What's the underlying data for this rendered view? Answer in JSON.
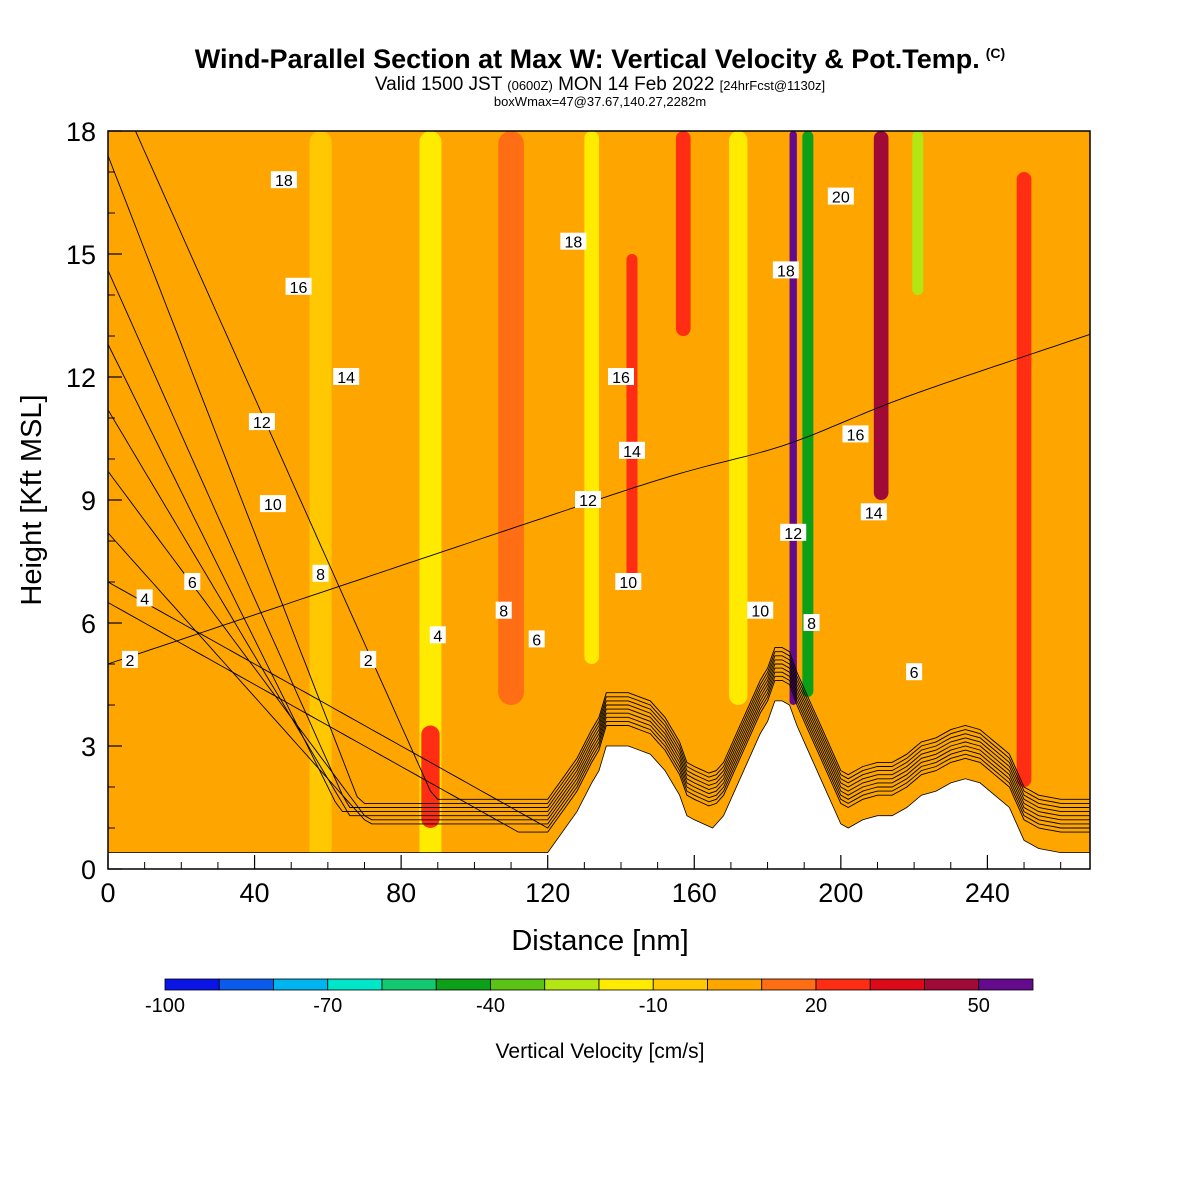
{
  "header": {
    "title": "Wind-Parallel Section at Max W: Vertical Velocity & Pot.Temp.",
    "copyright": "(C)",
    "valid_prefix": "Valid 1500 JST",
    "valid_utc": "(0600Z)",
    "valid_date": "MON 14 Feb 2022",
    "forecast": "[24hrFcst@1130z]",
    "boxwmax": "boxWmax=47@37.67,140.27,2282m"
  },
  "chart_data": {
    "type": "heatmap",
    "xlabel": "Distance [nm]",
    "ylabel": "Height [Kft MSL]",
    "xlim": [
      0,
      268
    ],
    "ylim": [
      0,
      18
    ],
    "x_ticks": [
      0,
      40,
      80,
      120,
      160,
      200,
      240
    ],
    "y_ticks": [
      0,
      3,
      6,
      9,
      12,
      15,
      18
    ],
    "colorbar": {
      "label": "Vertical Velocity [cm/s]",
      "tick_labels": [
        -100,
        -70,
        -40,
        -10,
        20,
        50
      ],
      "bins": [
        -100,
        -90,
        -80,
        -70,
        -60,
        -50,
        -40,
        -30,
        -20,
        -10,
        0,
        10,
        20,
        30,
        40,
        50,
        60
      ],
      "colors": [
        "#0a14e6",
        "#0a5aeb",
        "#00b4f0",
        "#00e6c8",
        "#14c870",
        "#0ca019",
        "#5ac314",
        "#b4e614",
        "#ffeb00",
        "#ffc800",
        "#ffa500",
        "#ff6e14",
        "#ff2d14",
        "#dc0a19",
        "#a00a37",
        "#640a8c"
      ]
    },
    "background_velocity": 2,
    "velocity_bands": [
      {
        "center_x": 5,
        "width": 30,
        "z_min": 0,
        "z_max": 6.3,
        "value": 5
      },
      {
        "center_x": 66,
        "width": 8,
        "z_min": 0,
        "z_max": 6,
        "value": 5
      },
      {
        "center_x": 58,
        "width": 6,
        "z_min": 0,
        "z_max": 18,
        "value": -5
      },
      {
        "center_x": 88,
        "width": 6,
        "z_min": 0,
        "z_max": 18,
        "value": -15
      },
      {
        "center_x": 110,
        "width": 7,
        "z_min": 4,
        "z_max": 18,
        "value": 15
      },
      {
        "center_x": 132,
        "width": 4,
        "z_min": 5,
        "z_max": 18,
        "value": -15
      },
      {
        "center_x": 143,
        "width": 3,
        "z_min": 7,
        "z_max": 15,
        "value": 20
      },
      {
        "center_x": 157,
        "width": 4,
        "z_min": 13,
        "z_max": 18,
        "value": 25
      },
      {
        "center_x": 172,
        "width": 5,
        "z_min": 4,
        "z_max": 18,
        "value": -15
      },
      {
        "center_x": 187,
        "width": 2,
        "z_min": 4,
        "z_max": 18,
        "value": 55
      },
      {
        "center_x": 191,
        "width": 3,
        "z_min": 4.2,
        "z_max": 18,
        "value": -45
      },
      {
        "center_x": 211,
        "width": 4,
        "z_min": 9,
        "z_max": 18,
        "value": 45
      },
      {
        "center_x": 221,
        "width": 3,
        "z_min": 14,
        "z_max": 18,
        "value": -30
      },
      {
        "center_x": 250,
        "width": 4,
        "z_min": 2,
        "z_max": 17,
        "value": 25
      },
      {
        "center_x": 88,
        "width": 5,
        "z_min": 1,
        "z_max": 3.5,
        "value": 25
      }
    ],
    "terrain": {
      "x": [
        0,
        120,
        128,
        132,
        134,
        136,
        142,
        148,
        152,
        156,
        158,
        160,
        165,
        168,
        172,
        176,
        178,
        180,
        182,
        184,
        186,
        188,
        190,
        192,
        195,
        198,
        200,
        202,
        206,
        210,
        214,
        218,
        222,
        226,
        230,
        234,
        238,
        242,
        246,
        248,
        250,
        254,
        260,
        268
      ],
      "z": [
        0.4,
        0.4,
        1.4,
        2.1,
        2.4,
        3.0,
        3.0,
        2.8,
        2.4,
        1.8,
        1.3,
        1.2,
        1.0,
        1.3,
        2.1,
        2.9,
        3.3,
        3.6,
        4.1,
        4.1,
        4.0,
        3.5,
        3.1,
        2.7,
        2.1,
        1.5,
        1.1,
        1.0,
        1.2,
        1.3,
        1.3,
        1.5,
        1.8,
        1.9,
        2.1,
        2.2,
        2.1,
        1.8,
        1.5,
        1.1,
        0.7,
        0.5,
        0.4,
        0.4
      ]
    },
    "theta_contours": [
      {
        "level": 2,
        "base": 5.0,
        "bump": 0.2,
        "slope": 0.003
      },
      {
        "level": 4,
        "base": 6.5,
        "bump": 1.0,
        "slope": -0.005
      },
      {
        "level": 6,
        "base": 7.0,
        "bump": 1.3,
        "slope": -0.005
      },
      {
        "level": 8,
        "base": 8.2,
        "bump": 1.8,
        "slope": -0.01
      },
      {
        "level": 10,
        "base": 9.7,
        "bump": 2.0,
        "slope": -0.012
      },
      {
        "level": 12,
        "base": 11.2,
        "bump": 2.0,
        "slope": -0.015
      },
      {
        "level": 14,
        "base": 12.8,
        "bump": 1.8,
        "slope": -0.018
      },
      {
        "level": 16,
        "base": 14.6,
        "bump": 1.5,
        "slope": -0.02
      },
      {
        "level": 18,
        "base": 17.4,
        "bump": 1.0,
        "slope": -0.023
      },
      {
        "level": 20,
        "base": 19.5,
        "bump": 0.9,
        "slope": -0.02
      }
    ],
    "contour_labels": [
      {
        "text": "18",
        "x": 48,
        "z": 16.8
      },
      {
        "text": "18",
        "x": 127,
        "z": 15.3
      },
      {
        "text": "18",
        "x": 185,
        "z": 14.6
      },
      {
        "text": "20",
        "x": 200,
        "z": 16.4
      },
      {
        "text": "16",
        "x": 52,
        "z": 14.2
      },
      {
        "text": "16",
        "x": 140,
        "z": 12.0
      },
      {
        "text": "16",
        "x": 204,
        "z": 10.6
      },
      {
        "text": "14",
        "x": 65,
        "z": 12.0
      },
      {
        "text": "14",
        "x": 143,
        "z": 10.2
      },
      {
        "text": "14",
        "x": 209,
        "z": 8.7
      },
      {
        "text": "12",
        "x": 42,
        "z": 10.9
      },
      {
        "text": "12",
        "x": 131,
        "z": 9.0
      },
      {
        "text": "12",
        "x": 187,
        "z": 8.2
      },
      {
        "text": "10",
        "x": 45,
        "z": 8.9
      },
      {
        "text": "10",
        "x": 142,
        "z": 7.0
      },
      {
        "text": "10",
        "x": 178,
        "z": 6.3
      },
      {
        "text": "8",
        "x": 58,
        "z": 7.2
      },
      {
        "text": "8",
        "x": 108,
        "z": 6.3
      },
      {
        "text": "8",
        "x": 192,
        "z": 6.0
      },
      {
        "text": "6",
        "x": 23,
        "z": 7.0
      },
      {
        "text": "6",
        "x": 117,
        "z": 5.6
      },
      {
        "text": "6",
        "x": 220,
        "z": 4.8
      },
      {
        "text": "4",
        "x": 10,
        "z": 6.6
      },
      {
        "text": "4",
        "x": 90,
        "z": 5.7
      },
      {
        "text": "2",
        "x": 6,
        "z": 5.1
      },
      {
        "text": "2",
        "x": 71,
        "z": 5.1
      }
    ]
  }
}
